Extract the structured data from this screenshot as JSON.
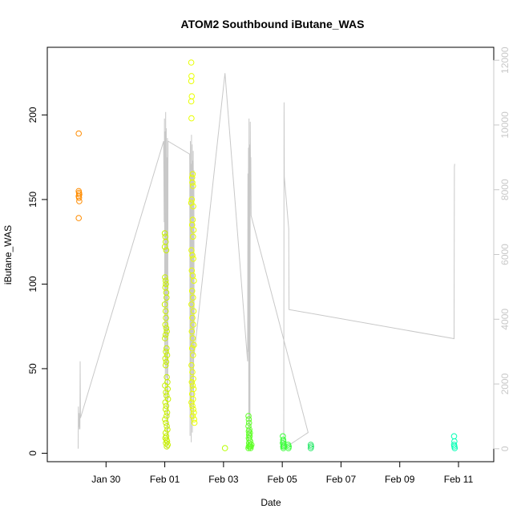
{
  "chart_data": {
    "type": "scatter",
    "title": "ATOM2 Southbound iButane_WAS",
    "xlabel": "Date",
    "ylabel": "iButane_WAS",
    "xlim": [
      -2.0,
      13.2
    ],
    "ylim": [
      -5,
      240
    ],
    "x_ticks": [
      {
        "label": "Jan 30",
        "x": 0
      },
      {
        "label": "Feb 01",
        "x": 2
      },
      {
        "label": "Feb 03",
        "x": 4
      },
      {
        "label": "Feb 05",
        "x": 6
      },
      {
        "label": "Feb 07",
        "x": 8
      },
      {
        "label": "Feb 09",
        "x": 10
      },
      {
        "label": "Feb 11",
        "x": 12
      }
    ],
    "y_ticks": [
      0,
      50,
      100,
      150,
      200
    ],
    "y2_ticks": [
      0,
      2000,
      4000,
      6000,
      8000,
      10000,
      12000
    ],
    "y2lim": [
      -400,
      12400
    ],
    "x_axis_note": "x values are days relative to Jan 30 00:00",
    "colors": {
      "series_jan29": "#ff8c00",
      "series_feb01": "#c8f000",
      "series_feb02": "#e8ff00",
      "series_feb03": "#b8ff00",
      "series_feb04": "#5fff28",
      "series_feb05": "#3cff3c",
      "series_feb06": "#2ae86b",
      "series_feb11": "#00ffb4",
      "secondary_line": "#c8c8c8"
    },
    "series": [
      {
        "color_key": "series_jan29",
        "points": [
          [
            -0.93,
            189
          ],
          [
            -0.93,
            155
          ],
          [
            -0.92,
            154
          ],
          [
            -0.91,
            153
          ],
          [
            -0.93,
            152
          ],
          [
            -0.92,
            151
          ],
          [
            -0.91,
            149
          ],
          [
            -0.93,
            139
          ]
        ]
      },
      {
        "color_key": "series_feb01",
        "points": [
          [
            2.0,
            130
          ],
          [
            2.02,
            128
          ],
          [
            2.03,
            125
          ],
          [
            2.0,
            122
          ],
          [
            2.05,
            120
          ],
          [
            2.01,
            104
          ],
          [
            2.03,
            102
          ],
          [
            2.04,
            100
          ],
          [
            2.02,
            98
          ],
          [
            2.05,
            95
          ],
          [
            2.06,
            92
          ],
          [
            2.0,
            88
          ],
          [
            2.03,
            84
          ],
          [
            2.04,
            80
          ],
          [
            2.02,
            76
          ],
          [
            2.05,
            74
          ],
          [
            2.07,
            72
          ],
          [
            2.03,
            70
          ],
          [
            2.01,
            68
          ],
          [
            2.06,
            62
          ],
          [
            2.04,
            60
          ],
          [
            2.08,
            58
          ],
          [
            2.02,
            56
          ],
          [
            2.05,
            54
          ],
          [
            2.03,
            52
          ],
          [
            2.07,
            45
          ],
          [
            2.09,
            42
          ],
          [
            2.01,
            40
          ],
          [
            2.1,
            38
          ],
          [
            2.04,
            36
          ],
          [
            2.06,
            34
          ],
          [
            2.11,
            32
          ],
          [
            2.02,
            30
          ],
          [
            2.05,
            28
          ],
          [
            2.03,
            26
          ],
          [
            2.08,
            24
          ],
          [
            2.06,
            22
          ],
          [
            2.01,
            20
          ],
          [
            2.04,
            18
          ],
          [
            2.07,
            16
          ],
          [
            2.09,
            14
          ],
          [
            2.03,
            12
          ],
          [
            2.05,
            10
          ],
          [
            2.02,
            9
          ],
          [
            2.06,
            8
          ],
          [
            2.08,
            7
          ],
          [
            2.04,
            6
          ],
          [
            2.1,
            5
          ],
          [
            2.07,
            4
          ]
        ]
      },
      {
        "color_key": "series_feb02",
        "points": [
          [
            2.9,
            231
          ],
          [
            2.91,
            223
          ],
          [
            2.9,
            220
          ],
          [
            2.92,
            211
          ],
          [
            2.9,
            208
          ],
          [
            2.91,
            198
          ],
          [
            2.95,
            165
          ],
          [
            2.93,
            163
          ],
          [
            2.94,
            160
          ],
          [
            2.96,
            158
          ],
          [
            2.92,
            150
          ],
          [
            2.9,
            148
          ],
          [
            2.97,
            146
          ],
          [
            2.95,
            138
          ],
          [
            2.93,
            135
          ],
          [
            2.98,
            132
          ],
          [
            2.96,
            128
          ],
          [
            2.91,
            120
          ],
          [
            2.94,
            117
          ],
          [
            2.97,
            115
          ],
          [
            2.92,
            108
          ],
          [
            2.95,
            105
          ],
          [
            2.99,
            102
          ],
          [
            2.93,
            96
          ],
          [
            2.96,
            92
          ],
          [
            2.91,
            88
          ],
          [
            2.98,
            84
          ],
          [
            2.94,
            80
          ],
          [
            2.97,
            76
          ],
          [
            2.92,
            72
          ],
          [
            2.95,
            68
          ],
          [
            2.99,
            64
          ],
          [
            2.93,
            62
          ],
          [
            2.96,
            58
          ],
          [
            2.91,
            52
          ],
          [
            2.94,
            48
          ],
          [
            2.97,
            44
          ],
          [
            2.92,
            42
          ],
          [
            2.95,
            40
          ],
          [
            2.98,
            38
          ],
          [
            2.93,
            35
          ],
          [
            2.96,
            32
          ],
          [
            2.91,
            30
          ],
          [
            2.94,
            28
          ],
          [
            2.97,
            26
          ],
          [
            2.99,
            24
          ],
          [
            2.95,
            22
          ],
          [
            3.0,
            20
          ],
          [
            3.01,
            18
          ]
        ]
      },
      {
        "color_key": "series_feb03",
        "points": [
          [
            4.05,
            3
          ]
        ]
      },
      {
        "color_key": "series_feb04",
        "points": [
          [
            4.85,
            22
          ],
          [
            4.86,
            20
          ],
          [
            4.87,
            18
          ],
          [
            4.85,
            16
          ],
          [
            4.88,
            14
          ],
          [
            4.86,
            13
          ],
          [
            4.9,
            12
          ],
          [
            4.87,
            11
          ],
          [
            4.89,
            10
          ],
          [
            4.86,
            9
          ],
          [
            4.88,
            8
          ],
          [
            4.91,
            7
          ],
          [
            4.87,
            6
          ],
          [
            4.9,
            5
          ],
          [
            4.86,
            4
          ],
          [
            4.89,
            4
          ],
          [
            4.92,
            3
          ],
          [
            4.85,
            3
          ],
          [
            4.93,
            4
          ],
          [
            4.95,
            5
          ]
        ]
      },
      {
        "color_key": "series_feb05",
        "points": [
          [
            6.02,
            10
          ],
          [
            6.03,
            8
          ],
          [
            6.04,
            7
          ],
          [
            6.02,
            6
          ],
          [
            6.05,
            5
          ],
          [
            6.03,
            4
          ],
          [
            6.06,
            4
          ],
          [
            6.04,
            3
          ],
          [
            6.2,
            5
          ],
          [
            6.22,
            4
          ],
          [
            6.21,
            3
          ]
        ]
      },
      {
        "color_key": "series_feb06",
        "points": [
          [
            6.97,
            5
          ],
          [
            6.98,
            4
          ],
          [
            6.97,
            3
          ]
        ]
      },
      {
        "color_key": "series_feb11",
        "points": [
          [
            11.85,
            10
          ],
          [
            11.86,
            7
          ],
          [
            11.85,
            5
          ],
          [
            11.86,
            4
          ],
          [
            11.87,
            3
          ]
        ]
      }
    ],
    "secondary_line": {
      "axis": "right",
      "points": [
        [
          -0.95,
          0
        ],
        [
          -0.94,
          1300
        ],
        [
          -0.93,
          600
        ],
        [
          -0.92,
          1100
        ],
        [
          -0.9,
          700
        ],
        [
          -0.89,
          600
        ],
        [
          -0.88,
          2700
        ],
        [
          -0.87,
          950
        ],
        [
          1.96,
          9500
        ],
        [
          1.97,
          8200
        ],
        [
          1.98,
          7000
        ],
        [
          1.99,
          10200
        ],
        [
          2.0,
          3000
        ],
        [
          2.01,
          9800
        ],
        [
          2.02,
          1500
        ],
        [
          2.03,
          10400
        ],
        [
          2.04,
          4500
        ],
        [
          2.05,
          9900
        ],
        [
          2.06,
          2200
        ],
        [
          2.07,
          9000
        ],
        [
          2.08,
          0
        ],
        [
          2.09,
          9600
        ],
        [
          2.1,
          300
        ],
        [
          2.11,
          9500
        ],
        [
          2.85,
          9100
        ],
        [
          2.86,
          400
        ],
        [
          2.87,
          9500
        ],
        [
          2.88,
          1200
        ],
        [
          2.89,
          8800
        ],
        [
          2.9,
          200
        ],
        [
          2.91,
          9700
        ],
        [
          2.92,
          3100
        ],
        [
          2.93,
          9400
        ],
        [
          2.94,
          500
        ],
        [
          2.95,
          8900
        ],
        [
          2.96,
          1800
        ],
        [
          2.97,
          9200
        ],
        [
          2.98,
          900
        ],
        [
          2.99,
          8600
        ],
        [
          3.0,
          2900
        ],
        [
          4.05,
          11600
        ],
        [
          4.82,
          2700
        ],
        [
          4.83,
          8500
        ],
        [
          4.84,
          3000
        ],
        [
          4.85,
          9300
        ],
        [
          4.86,
          200
        ],
        [
          4.87,
          10200
        ],
        [
          4.88,
          1000
        ],
        [
          4.89,
          9400
        ],
        [
          4.9,
          400
        ],
        [
          4.91,
          10100
        ],
        [
          4.92,
          8200
        ],
        [
          4.93,
          9000
        ],
        [
          4.94,
          7200
        ],
        [
          6.88,
          500
        ],
        [
          6.05,
          0
        ],
        [
          6.06,
          10700
        ],
        [
          6.07,
          8400
        ],
        [
          6.22,
          6800
        ],
        [
          6.23,
          4300
        ],
        [
          11.85,
          3400
        ],
        [
          11.86,
          8700
        ],
        [
          11.87,
          8800
        ]
      ]
    }
  }
}
